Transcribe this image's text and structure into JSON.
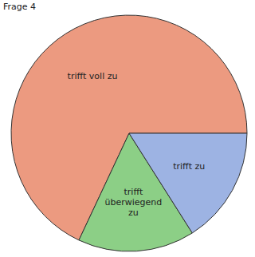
{
  "chart_data": {
    "type": "pie",
    "title": "Frage 4",
    "categories": [
      "trifft voll zu",
      "trifft überwiegend zu",
      "trifft zu"
    ],
    "values": [
      68,
      16,
      16
    ],
    "colors": [
      "#ec9a80",
      "#8ccf86",
      "#9db3e3"
    ]
  }
}
